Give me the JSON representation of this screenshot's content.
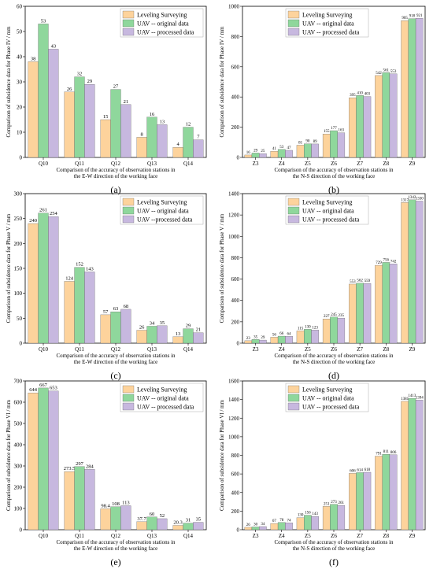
{
  "chart_data": [
    {
      "type": "bar",
      "panel_label": "(a)",
      "ylabel": "Comparison of subsidence data for Phase IV / mm",
      "xlabel": [
        "Comparison of the accuracy of observation stations in",
        "the E-W direction of the working face"
      ],
      "categories": [
        "Q10",
        "Q11",
        "Q12",
        "Q13",
        "Q14"
      ],
      "ylim": [
        0,
        60
      ],
      "yticks": [
        0,
        10,
        20,
        30,
        40,
        50,
        60
      ],
      "legend_position": "top-right",
      "series": [
        {
          "name": "Leveling Surveying",
          "values": [
            38,
            26,
            15,
            8,
            4
          ],
          "labels": [
            "38",
            "26",
            "15",
            "8",
            "4"
          ]
        },
        {
          "name": "UAV -- original data",
          "values": [
            53,
            32,
            27,
            16,
            12
          ],
          "labels": [
            "53",
            "32",
            "27",
            "16",
            "12"
          ]
        },
        {
          "name": "UAV -- processed data",
          "values": [
            43,
            29,
            21,
            13,
            7
          ],
          "labels": [
            "43",
            "29",
            "21",
            "13",
            "7"
          ]
        }
      ]
    },
    {
      "type": "bar",
      "panel_label": "(b)",
      "ylabel": "Comparison of subsidence data for Phase IV / mm",
      "xlabel": [
        "Comparison of the accuracy of observation stations in",
        "the N-S direction of the working face"
      ],
      "categories": [
        "Z3",
        "Z4",
        "Z5",
        "Z6",
        "Z7",
        "Z8",
        "Z9"
      ],
      "ylim": [
        0,
        1000
      ],
      "yticks": [
        0,
        200,
        400,
        600,
        800,
        1000
      ],
      "legend_position": "top-left",
      "series": [
        {
          "name": "Leveling Surveying",
          "values": [
            16,
            41,
            81,
            155,
            395,
            542,
            905
          ],
          "labels": [
            "16",
            "41",
            "81",
            "155",
            "395",
            "542",
            "905"
          ]
        },
        {
          "name": "UAV -- original data",
          "values": [
            29,
            53,
            90,
            177,
            410,
            561,
            918
          ],
          "labels": [
            "29",
            "53",
            "90",
            "177",
            "410",
            "561",
            "918"
          ]
        },
        {
          "name": "UAV -- processed data",
          "values": [
            25,
            47,
            89,
            163,
            403,
            553,
            921
          ],
          "labels": [
            "25",
            "47",
            "89",
            "163",
            "403",
            "553",
            "921"
          ]
        }
      ]
    },
    {
      "type": "bar",
      "panel_label": "(c)",
      "ylabel": "Comparison of subsidence data for Phase V / mm",
      "xlabel": [
        "Comparison of the accuracy of observation stations in",
        "the E-W direction of the working face"
      ],
      "categories": [
        "Q10",
        "Q11",
        "Q12",
        "Q13",
        "Q14"
      ],
      "ylim": [
        0,
        300
      ],
      "yticks": [
        0,
        50,
        100,
        150,
        200,
        250,
        300
      ],
      "legend_position": "top-right",
      "series": [
        {
          "name": "Leveling Surveying",
          "values": [
            240,
            124,
            57,
            26,
            13
          ],
          "labels": [
            "240",
            "124",
            "57",
            "26",
            "13"
          ]
        },
        {
          "name": "UAV -- original data",
          "values": [
            261,
            152,
            63,
            34,
            29
          ],
          "labels": [
            "261",
            "152",
            "63",
            "34",
            "29"
          ]
        },
        {
          "name": "UAV --processed data",
          "values": [
            254,
            143,
            68,
            35,
            21
          ],
          "labels": [
            "254",
            "143",
            "68",
            "35",
            "21"
          ]
        }
      ]
    },
    {
      "type": "bar",
      "panel_label": "(d)",
      "ylabel": "Comparison of subsidence data for Phase V / mm",
      "xlabel": [
        "Comparison of the accuracy of observation stations in",
        "the N-S direction of the working face"
      ],
      "categories": [
        "Z3",
        "Z4",
        "Z5",
        "Z6",
        "Z7",
        "Z8",
        "Z9"
      ],
      "ylim": [
        0,
        1400
      ],
      "yticks": [
        0,
        200,
        400,
        600,
        800,
        1000,
        1200,
        1400
      ],
      "legend_position": "top-left",
      "series": [
        {
          "name": "Leveling Surveying",
          "values": [
            23,
            56,
            115,
            227,
            553,
            729,
            1317
          ],
          "labels": [
            "23",
            "56",
            "115",
            "227",
            "553",
            "729",
            "1317"
          ]
        },
        {
          "name": "UAV -- original data",
          "values": [
            35,
            66,
            130,
            245,
            562,
            756,
            1342
          ],
          "labels": [
            "35",
            "66",
            "130",
            "245",
            "562",
            "756",
            "1342"
          ]
        },
        {
          "name": "UAV -- processed data",
          "values": [
            29,
            64,
            123,
            235,
            559,
            742,
            1330
          ],
          "labels": [
            "29",
            "64",
            "123",
            "235",
            "559",
            "742",
            "1330"
          ]
        }
      ]
    },
    {
      "type": "bar",
      "panel_label": "(e)",
      "ylabel": "Comparison of subsidence data for Phase VI / mm",
      "xlabel": [
        "Comparison of the accuracy of observation stations in",
        "the E-W direction of the working face"
      ],
      "categories": [
        "Q10",
        "Q11",
        "Q12",
        "Q13",
        "Q14"
      ],
      "ylim": [
        0,
        700
      ],
      "yticks": [
        0,
        100,
        200,
        300,
        400,
        500,
        600,
        700
      ],
      "legend_position": "top-right",
      "series": [
        {
          "name": "Leveling Surveying",
          "values": [
            644,
            273.5,
            98.4,
            37.7,
            20.3
          ],
          "labels": [
            "644",
            "273.5",
            "98.4",
            "37.7",
            "20.3"
          ]
        },
        {
          "name": "UAV -- original data",
          "values": [
            667,
            297,
            108,
            60,
            31
          ],
          "labels": [
            "667",
            "297",
            "108",
            "60",
            "31"
          ]
        },
        {
          "name": "UAV -- processed data",
          "values": [
            653,
            284,
            113,
            52,
            35
          ],
          "labels": [
            "653",
            "284",
            "113",
            "52",
            "35"
          ]
        }
      ]
    },
    {
      "type": "bar",
      "panel_label": "(f)",
      "ylabel": "Comparison of subsidence data for Phase VI / mm",
      "xlabel": [
        "Comparison of the accuracy of observation stations in",
        "the N-S direction of the working face"
      ],
      "categories": [
        "Z3",
        "Z4",
        "Z5",
        "Z6",
        "Z7",
        "Z8",
        "Z9"
      ],
      "ylim": [
        0,
        1600
      ],
      "yticks": [
        0,
        200,
        400,
        600,
        800,
        1000,
        1200,
        1400,
        1600
      ],
      "legend_position": "top-left",
      "series": [
        {
          "name": "Leveling Surveying",
          "values": [
            26,
            67,
            130,
            251,
            606,
            791,
            1381
          ],
          "labels": [
            "26",
            "67",
            "130",
            "251",
            "606",
            "791",
            "1381"
          ]
        },
        {
          "name": "UAV -- original data",
          "values": [
            30,
            78,
            156,
            273,
            614,
            811,
            1413
          ],
          "labels": [
            "30",
            "78",
            "156",
            "273",
            "614",
            "811",
            "1413"
          ]
        },
        {
          "name": "UAV -- processed data",
          "values": [
            34,
            74,
            143,
            261,
            618,
            806,
            1394
          ],
          "labels": [
            "34",
            "74",
            "143",
            "261",
            "618",
            "806",
            "1394"
          ]
        }
      ]
    }
  ],
  "colors": {
    "series": [
      "#fdd39c",
      "#8fd79c",
      "#c7b8df"
    ],
    "axis": "#000000"
  }
}
